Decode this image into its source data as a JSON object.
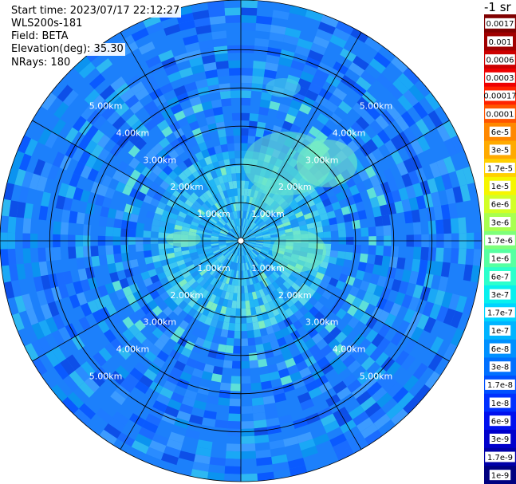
{
  "header": {
    "start_time": "Start time: 2023/07/17 22:12:27",
    "instrument": "WLS200s-181",
    "field": "Field: BETA",
    "elevation": "Elevation(deg): 35.30",
    "nrays": "NRays: 180"
  },
  "chart_data": {
    "type": "heatmap",
    "projection": "polar-ppi",
    "field": "BETA",
    "units_label": "-1 sr",
    "max_range_km": 6.3,
    "range_rings": [
      {
        "km": 1.0,
        "label": "1.00km"
      },
      {
        "km": 2.0,
        "label": "2.00km"
      },
      {
        "km": 3.0,
        "label": "3.00km"
      },
      {
        "km": 4.0,
        "label": "4.00km"
      },
      {
        "km": 5.0,
        "label": "5.00km"
      }
    ],
    "radial_spokes_deg": [
      0,
      30,
      60,
      90,
      120,
      150,
      180,
      210,
      240,
      270,
      300,
      330
    ],
    "ring_label_angles_deg": [
      45,
      135,
      225,
      315
    ],
    "dominant_value_outer": "1.7e-8",
    "dominant_value_inner": "1.7e-7",
    "colorbar_labels": [
      "0.0017",
      "0.001",
      "0.0006",
      "0.0003",
      "0.00017",
      "0.0001",
      "6e-5",
      "3e-5",
      "1.7e-5",
      "1e-5",
      "6e-6",
      "3e-6",
      "1.7e-6",
      "1e-6",
      "6e-7",
      "3e-7",
      "1.7e-7",
      "1e-7",
      "6e-8",
      "3e-8",
      "1.7e-8",
      "1e-8",
      "6e-9",
      "3e-9",
      "1.7e-9",
      "1e-9"
    ],
    "colorbar_colors": [
      "#800000",
      "#a00000",
      "#cc0000",
      "#ee0000",
      "#ff2200",
      "#ff5500",
      "#ff8800",
      "#ffaa00",
      "#ffd000",
      "#f6f600",
      "#d2ff26",
      "#a8ff50",
      "#7eff7a",
      "#56ffa2",
      "#2cffcc",
      "#08f0ee",
      "#00d4ff",
      "#00b4ff",
      "#0090ff",
      "#0070ff",
      "#0050ff",
      "#0030ff",
      "#0010ee",
      "#0000cc",
      "#0000a8",
      "#000080"
    ]
  }
}
